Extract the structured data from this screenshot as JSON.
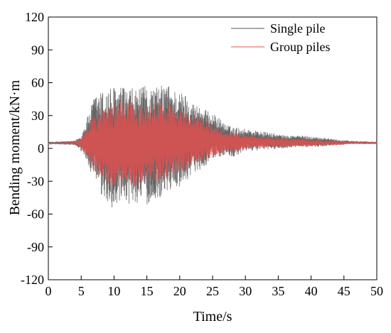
{
  "chart_data": {
    "type": "line",
    "xlabel": "Time/s",
    "ylabel": "Bending moment/kN·m",
    "xlim": [
      0,
      50
    ],
    "ylim": [
      -120,
      120
    ],
    "x_ticks": [
      "0",
      "5",
      "10",
      "15",
      "20",
      "25",
      "30",
      "35",
      "40",
      "45",
      "50"
    ],
    "y_ticks": [
      "120",
      "90",
      "60",
      "30",
      "0",
      "-30",
      "-60",
      "-90",
      "-120"
    ],
    "grid": false,
    "legend_position": "top-right",
    "series": [
      {
        "name": "Single pile",
        "color": "#555555",
        "envelope": {
          "t": [
            0,
            4,
            5,
            6,
            7,
            8,
            9,
            10,
            11,
            12,
            13,
            14,
            15,
            16,
            17,
            18,
            19,
            20,
            21,
            22,
            23,
            24,
            25,
            26,
            27,
            28,
            30,
            32,
            34,
            36,
            38,
            40,
            42,
            44,
            46,
            50
          ],
          "max": [
            6,
            7,
            12,
            30,
            48,
            52,
            56,
            57,
            57,
            55,
            55,
            55,
            58,
            56,
            57,
            60,
            55,
            52,
            50,
            42,
            40,
            35,
            32,
            28,
            22,
            20,
            18,
            16,
            14,
            12,
            12,
            11,
            10,
            8,
            7,
            6
          ],
          "min": [
            4,
            3,
            -3,
            -15,
            -30,
            -45,
            -52,
            -55,
            -55,
            -53,
            -50,
            -50,
            -52,
            -50,
            -45,
            -40,
            -38,
            -35,
            -30,
            -22,
            -20,
            -15,
            -10,
            -8,
            -6,
            -10,
            -2,
            -2,
            -1,
            0,
            1,
            1,
            2,
            3,
            4,
            4
          ]
        }
      },
      {
        "name": "Group piles",
        "color": "#e05050",
        "envelope": {
          "t": [
            0,
            4,
            5,
            6,
            7,
            8,
            9,
            10,
            11,
            12,
            13,
            14,
            15,
            16,
            17,
            18,
            19,
            20,
            21,
            22,
            23,
            24,
            25,
            26,
            27,
            28,
            30,
            32,
            34,
            36,
            38,
            40,
            42,
            44,
            46,
            50
          ],
          "max": [
            5,
            6,
            10,
            20,
            30,
            38,
            40,
            42,
            45,
            42,
            44,
            40,
            38,
            42,
            45,
            40,
            40,
            38,
            35,
            32,
            30,
            25,
            20,
            18,
            16,
            15,
            12,
            11,
            10,
            9,
            9,
            8,
            7,
            7,
            6,
            6
          ],
          "min": [
            4,
            4,
            0,
            -10,
            -20,
            -28,
            -35,
            -38,
            -38,
            -35,
            -35,
            -33,
            -30,
            -30,
            -30,
            -28,
            -25,
            -22,
            -20,
            -15,
            -12,
            -10,
            -8,
            -5,
            -3,
            -5,
            0,
            0,
            1,
            1,
            2,
            2,
            3,
            3,
            4,
            4
          ]
        }
      }
    ]
  }
}
